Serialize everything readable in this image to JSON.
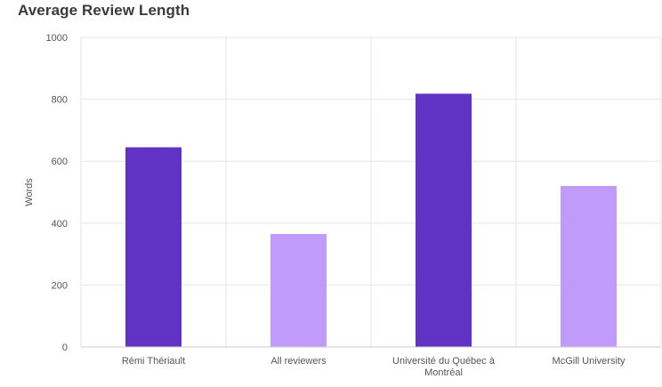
{
  "chart_data": {
    "type": "bar",
    "title": "Average Review Length",
    "xlabel": "",
    "ylabel": "Words",
    "ylim": [
      0,
      1000
    ],
    "yticks": [
      0,
      200,
      400,
      600,
      800,
      1000
    ],
    "categories": [
      [
        "Rémi Thériault"
      ],
      [
        "All reviewers"
      ],
      [
        "Université du Québec à",
        "Montréal"
      ],
      [
        "McGill University"
      ]
    ],
    "values": [
      645,
      365,
      818,
      520
    ],
    "colors": [
      "#6033c4",
      "#c09bfc",
      "#6033c4",
      "#c09bfc"
    ],
    "grid": true,
    "legend": "none"
  }
}
